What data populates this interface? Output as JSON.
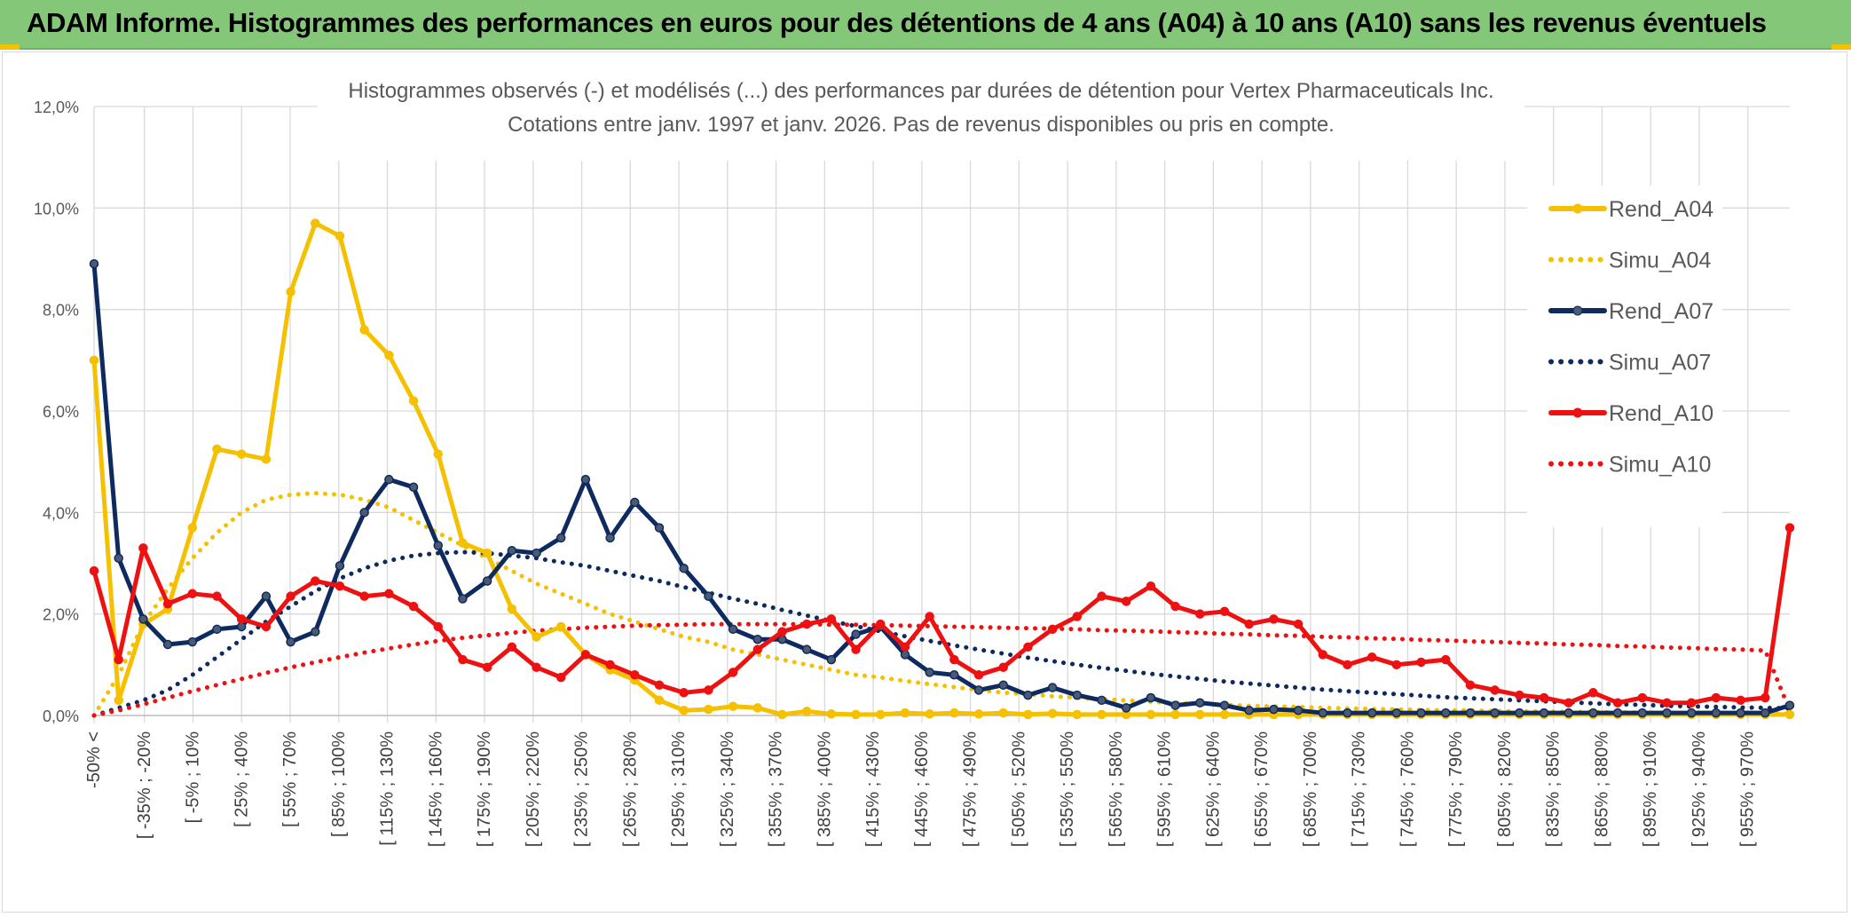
{
  "header": {
    "title": "ADAM Informe. Histogrammes des performances en euros pour des détentions de 4 ans (A04) à 10 ans (A10) sans les revenus éventuels"
  },
  "chart_data": {
    "type": "line",
    "title": "Histogrammes observés (-) et modélisés (...) des performances par durées de détention pour Vertex Pharmaceuticals Inc.",
    "subtitle": "Cotations entre janv. 1997 et janv. 2026. Pas de revenus disponibles ou pris en compte.",
    "ylim": [
      0,
      12
    ],
    "yticks": [
      "0,0%",
      "2,0%",
      "4,0%",
      "6,0%",
      "8,0%",
      "10,0%",
      "12,0%"
    ],
    "grid": true,
    "legend_position": "right",
    "x_labels": [
      "-50% <",
      "[ -35% ; -20%",
      "[ -5% ; 10%",
      "[ 25% ; 40%",
      "[ 55% ; 70%",
      "[ 85% ; 100%",
      "[ 115% ; 130%",
      "[ 145% ; 160%",
      "[ 175% ; 190%",
      "[ 205% ; 220%",
      "[ 235% ; 250%",
      "[ 265% ; 280%",
      "[ 295% ; 310%",
      "[ 325% ; 340%",
      "[ 355% ; 370%",
      "[ 385% ; 400%",
      "[ 415% ; 430%",
      "[ 445% ; 460%",
      "[ 475% ; 490%",
      "[ 505% ; 520%",
      "[ 535% ; 550%",
      "[ 565% ; 580%",
      "[ 595% ; 610%",
      "[ 625% ; 640%",
      "[ 655% ; 670%",
      "[ 685% ; 700%",
      "[ 715% ; 730%",
      "[ 745% ; 760%",
      "[ 775% ; 790%",
      "[ 805% ; 820%",
      "[ 835% ; 850%",
      "[ 865% ; 880%",
      "[ 895% ; 910%",
      "[ 925% ; 940%",
      "[ 955% ; 970%"
    ],
    "series": [
      {
        "name": "Rend_A04",
        "style": "solid",
        "color": "#f5c000",
        "marker": "circle",
        "values": [
          7.0,
          0.3,
          1.8,
          2.1,
          3.7,
          5.25,
          5.15,
          5.05,
          8.35,
          9.7,
          9.45,
          7.6,
          7.1,
          6.2,
          5.15,
          3.4,
          3.2,
          2.1,
          1.55,
          1.75,
          1.2,
          0.9,
          0.7,
          0.3,
          0.1,
          0.12,
          0.18,
          0.15,
          0.02,
          0.08,
          0.03,
          0.02,
          0.02,
          0.05,
          0.03,
          0.05,
          0.03,
          0.05,
          0.02,
          0.04,
          0.02,
          0.02,
          0.02,
          0.02,
          0.02,
          0.02,
          0.02,
          0.02,
          0.02,
          0.02,
          0.02,
          0.02,
          0.02,
          0.02,
          0.02,
          0.02,
          0.02,
          0.02,
          0.02,
          0.02,
          0.02,
          0.02,
          0.02,
          0.02,
          0.02,
          0.02,
          0.02,
          0.02,
          0.02,
          0.02
        ]
      },
      {
        "name": "Simu_A04",
        "style": "dotted",
        "color": "#f5c000",
        "values": [
          0.0,
          0.8,
          1.8,
          2.5,
          3.1,
          3.6,
          4.0,
          4.25,
          4.35,
          4.38,
          4.35,
          4.25,
          4.1,
          3.85,
          3.6,
          3.35,
          3.1,
          2.85,
          2.6,
          2.4,
          2.2,
          2.0,
          1.85,
          1.7,
          1.55,
          1.45,
          1.3,
          1.2,
          1.1,
          1.0,
          0.9,
          0.8,
          0.75,
          0.68,
          0.62,
          0.56,
          0.5,
          0.45,
          0.42,
          0.38,
          0.35,
          0.32,
          0.3,
          0.27,
          0.25,
          0.23,
          0.21,
          0.19,
          0.18,
          0.17,
          0.15,
          0.14,
          0.13,
          0.12,
          0.11,
          0.1,
          0.1,
          0.09,
          0.08,
          0.08,
          0.07,
          0.07,
          0.06,
          0.06,
          0.05,
          0.05,
          0.05,
          0.04,
          0.04,
          0.04
        ]
      },
      {
        "name": "Rend_A07",
        "style": "solid",
        "color": "#0e2a5e",
        "marker": "circle",
        "values": [
          8.9,
          3.1,
          1.9,
          1.4,
          1.45,
          1.7,
          1.75,
          2.35,
          1.45,
          1.65,
          2.95,
          4.0,
          4.65,
          4.5,
          3.35,
          2.3,
          2.65,
          3.25,
          3.2,
          3.5,
          4.65,
          3.5,
          4.2,
          3.7,
          2.9,
          2.35,
          1.7,
          1.5,
          1.5,
          1.3,
          1.1,
          1.6,
          1.75,
          1.2,
          0.85,
          0.8,
          0.5,
          0.6,
          0.4,
          0.55,
          0.4,
          0.3,
          0.15,
          0.35,
          0.2,
          0.25,
          0.2,
          0.1,
          0.12,
          0.1,
          0.05,
          0.05,
          0.05,
          0.05,
          0.05,
          0.05,
          0.05,
          0.05,
          0.05,
          0.05,
          0.05,
          0.05,
          0.05,
          0.05,
          0.05,
          0.05,
          0.05,
          0.05,
          0.05,
          0.2
        ]
      },
      {
        "name": "Simu_A07",
        "style": "dotted",
        "color": "#0e2a5e",
        "values": [
          0.0,
          0.15,
          0.3,
          0.5,
          0.8,
          1.15,
          1.5,
          1.85,
          2.15,
          2.45,
          2.7,
          2.9,
          3.05,
          3.15,
          3.2,
          3.22,
          3.2,
          3.15,
          3.1,
          3.02,
          2.95,
          2.85,
          2.75,
          2.65,
          2.53,
          2.42,
          2.3,
          2.2,
          2.08,
          1.97,
          1.86,
          1.76,
          1.66,
          1.56,
          1.47,
          1.38,
          1.3,
          1.22,
          1.14,
          1.07,
          1.0,
          0.94,
          0.88,
          0.82,
          0.77,
          0.72,
          0.67,
          0.63,
          0.59,
          0.55,
          0.51,
          0.48,
          0.45,
          0.42,
          0.39,
          0.36,
          0.34,
          0.32,
          0.3,
          0.28,
          0.26,
          0.24,
          0.22,
          0.21,
          0.19,
          0.18,
          0.17,
          0.16,
          0.15,
          0.14
        ]
      },
      {
        "name": "Rend_A10",
        "style": "solid",
        "color": "#ee1111",
        "marker": "circle",
        "values": [
          2.85,
          1.1,
          3.3,
          2.2,
          2.4,
          2.35,
          1.9,
          1.75,
          2.35,
          2.65,
          2.55,
          2.35,
          2.4,
          2.15,
          1.75,
          1.1,
          0.95,
          1.35,
          0.95,
          0.75,
          1.2,
          1.0,
          0.8,
          0.6,
          0.45,
          0.5,
          0.85,
          1.3,
          1.65,
          1.8,
          1.9,
          1.3,
          1.8,
          1.35,
          1.95,
          1.1,
          0.8,
          0.95,
          1.35,
          1.7,
          1.95,
          2.35,
          2.25,
          2.55,
          2.15,
          2.0,
          2.05,
          1.8,
          1.9,
          1.8,
          1.2,
          1.0,
          1.15,
          1.0,
          1.05,
          1.1,
          0.6,
          0.5,
          0.4,
          0.35,
          0.25,
          0.45,
          0.25,
          0.35,
          0.25,
          0.25,
          0.35,
          0.3,
          0.35,
          3.7
        ]
      },
      {
        "name": "Simu_A10",
        "style": "dotted",
        "color": "#ee1111",
        "values": [
          0.0,
          0.1,
          0.22,
          0.35,
          0.48,
          0.6,
          0.72,
          0.84,
          0.95,
          1.05,
          1.15,
          1.24,
          1.32,
          1.4,
          1.47,
          1.53,
          1.58,
          1.63,
          1.67,
          1.7,
          1.73,
          1.75,
          1.77,
          1.78,
          1.79,
          1.8,
          1.8,
          1.8,
          1.8,
          1.8,
          1.79,
          1.79,
          1.78,
          1.77,
          1.76,
          1.75,
          1.74,
          1.73,
          1.72,
          1.71,
          1.7,
          1.68,
          1.67,
          1.66,
          1.64,
          1.63,
          1.61,
          1.6,
          1.58,
          1.57,
          1.55,
          1.54,
          1.52,
          1.51,
          1.49,
          1.48,
          1.46,
          1.45,
          1.43,
          1.42,
          1.4,
          1.39,
          1.37,
          1.36,
          1.34,
          1.33,
          1.31,
          1.3,
          1.28,
          0.1
        ]
      }
    ]
  }
}
